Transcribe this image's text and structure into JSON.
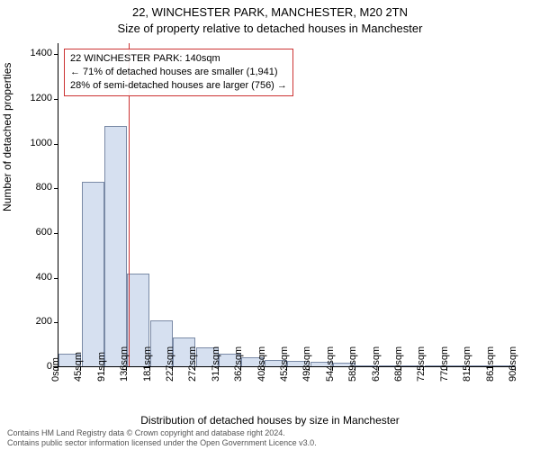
{
  "titles": {
    "line1": "22, WINCHESTER PARK, MANCHESTER, M20 2TN",
    "line2": "Size of property relative to detached houses in Manchester"
  },
  "axes": {
    "ylabel": "Number of detached properties",
    "xlabel": "Distribution of detached houses by size in Manchester",
    "yticks": [
      0,
      200,
      400,
      600,
      800,
      1000,
      1200,
      1400
    ],
    "ymax": 1450,
    "xticks": [
      "0sqm",
      "45sqm",
      "91sqm",
      "136sqm",
      "181sqm",
      "227sqm",
      "272sqm",
      "317sqm",
      "362sqm",
      "408sqm",
      "453sqm",
      "498sqm",
      "544sqm",
      "589sqm",
      "634sqm",
      "680sqm",
      "725sqm",
      "770sqm",
      "815sqm",
      "861sqm",
      "906sqm"
    ]
  },
  "bars": {
    "values": [
      55,
      825,
      1075,
      415,
      205,
      130,
      85,
      55,
      40,
      30,
      25,
      20,
      18,
      0,
      0,
      0,
      0,
      0,
      0,
      0
    ],
    "fill": "#d6e0f0",
    "stroke": "#7a8aa6",
    "width_frac": 0.98
  },
  "reference_line": {
    "value_sqm": 140,
    "color": "#cc3333"
  },
  "annotation": {
    "lines": [
      "22 WINCHESTER PARK: 140sqm",
      "← 71% of detached houses are smaller (1,941)",
      "28% of semi-detached houses are larger (756) →"
    ],
    "border_color": "#cc3333"
  },
  "footer": {
    "line1": "Contains HM Land Registry data © Crown copyright and database right 2024.",
    "line2": "Contains public sector information licensed under the Open Government Licence v3.0."
  },
  "style": {
    "background": "#ffffff",
    "text_color": "#000000",
    "footer_color": "#555555"
  }
}
